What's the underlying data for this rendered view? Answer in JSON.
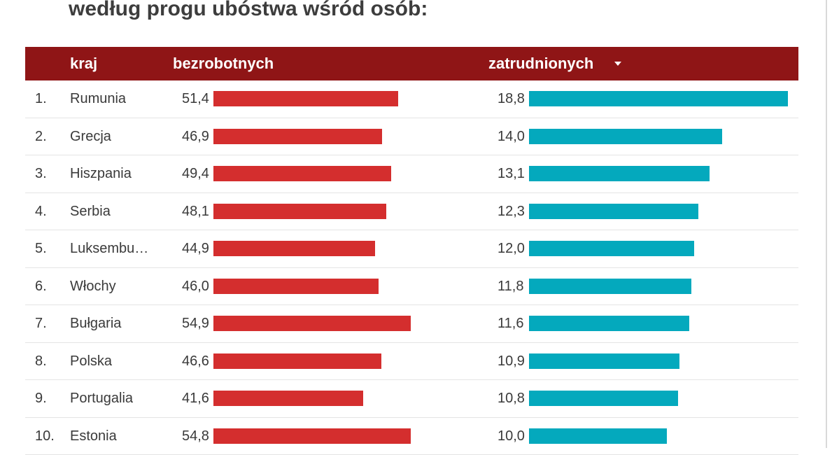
{
  "title": "według progu ubóstwa wśród osób:",
  "chart_data": {
    "type": "table",
    "columns": [
      "kraj",
      "bezrobotnych",
      "zatrudnionych"
    ],
    "sort_column": "zatrudnionych",
    "sort_order": "descending",
    "rows": [
      {
        "rank": "1.",
        "country": "Rumunia",
        "unemployed": 51.4,
        "unemployed_label": "51,4",
        "employed": 18.8,
        "employed_label": "18,8"
      },
      {
        "rank": "2.",
        "country": "Grecja",
        "unemployed": 46.9,
        "unemployed_label": "46,9",
        "employed": 14.0,
        "employed_label": "14,0"
      },
      {
        "rank": "3.",
        "country": "Hiszpania",
        "unemployed": 49.4,
        "unemployed_label": "49,4",
        "employed": 13.1,
        "employed_label": "13,1"
      },
      {
        "rank": "4.",
        "country": "Serbia",
        "unemployed": 48.1,
        "unemployed_label": "48,1",
        "employed": 12.3,
        "employed_label": "12,3"
      },
      {
        "rank": "5.",
        "country": "Luksembu…",
        "unemployed": 44.9,
        "unemployed_label": "44,9",
        "employed": 12.0,
        "employed_label": "12,0"
      },
      {
        "rank": "6.",
        "country": "Włochy",
        "unemployed": 46.0,
        "unemployed_label": "46,0",
        "employed": 11.8,
        "employed_label": "11,8"
      },
      {
        "rank": "7.",
        "country": "Bułgaria",
        "unemployed": 54.9,
        "unemployed_label": "54,9",
        "employed": 11.6,
        "employed_label": "11,6"
      },
      {
        "rank": "8.",
        "country": "Polska",
        "unemployed": 46.6,
        "unemployed_label": "46,6",
        "employed": 10.9,
        "employed_label": "10,9"
      },
      {
        "rank": "9.",
        "country": "Portugalia",
        "unemployed": 41.6,
        "unemployed_label": "41,6",
        "employed": 10.8,
        "employed_label": "10,8"
      },
      {
        "rank": "10.",
        "country": "Estonia",
        "unemployed": 54.8,
        "unemployed_label": "54,8",
        "employed": 10.0,
        "employed_label": "10,0"
      }
    ],
    "colors": {
      "header": "#8f1516",
      "unemployed_bar": "#d42e2e",
      "employed_bar": "#04a9bd"
    }
  }
}
